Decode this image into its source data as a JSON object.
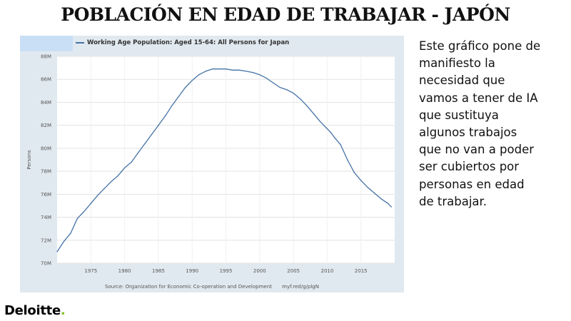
{
  "slide": {
    "title": "POBLACIÓN EN EDAD DE TRABAJAR - JAPÓN",
    "text_lines": [
      "Este gráfico pone de",
      "manifiesto la",
      "necesidad que",
      "vamos a tener de IA",
      "que sustituya",
      "algunos trabajos",
      "que no van a poder",
      "ser cubiertos por",
      "personas en edad",
      "de trabajar."
    ],
    "logo_text": "Deloitte",
    "logo_dot": "."
  },
  "chart_data": {
    "type": "line",
    "legend": "Working Age Population: Aged 15-64: All Persons for Japan",
    "ylabel": "Persons",
    "xlabel": "",
    "source": "Source: Organization for Economic Co-operation and Development",
    "link": "myf.red/g/plgN",
    "line_color": "#4572a7",
    "xlim": [
      1970,
      2020
    ],
    "ylim": [
      70000000,
      88000000
    ],
    "y_ticks": [
      70000000,
      72000000,
      74000000,
      76000000,
      78000000,
      80000000,
      82000000,
      84000000,
      86000000,
      88000000
    ],
    "y_tick_labels": [
      "70M",
      "72M",
      "74M",
      "76M",
      "78M",
      "80M",
      "82M",
      "84M",
      "86M",
      "88M"
    ],
    "x_ticks": [
      1975,
      1980,
      1985,
      1990,
      1995,
      2000,
      2005,
      2010,
      2015
    ],
    "x_tick_labels": [
      "1975",
      "1980",
      "1985",
      "1990",
      "1995",
      "2000",
      "2005",
      "2010",
      "2015"
    ],
    "grid": true,
    "series": [
      {
        "name": "Working Age Population: Aged 15-64: All Persons for Japan",
        "x": [
          1970,
          1971,
          1972,
          1973,
          1974,
          1975,
          1976,
          1977,
          1978,
          1979,
          1980,
          1981,
          1982,
          1983,
          1984,
          1985,
          1986,
          1987,
          1988,
          1989,
          1990,
          1991,
          1992,
          1993,
          1994,
          1995,
          1996,
          1997,
          1998,
          1999,
          2000,
          2001,
          2002,
          2003,
          2004,
          2005,
          2006,
          2007,
          2008,
          2009,
          2010,
          2010.5,
          2011,
          2012,
          2013,
          2014,
          2015,
          2016,
          2017,
          2018,
          2019,
          2019.5
        ],
        "values": [
          71000000,
          71900000,
          72600000,
          73900000,
          74500000,
          75200000,
          75900000,
          76500000,
          77100000,
          77600000,
          78300000,
          78800000,
          79600000,
          80400000,
          81200000,
          82000000,
          82800000,
          83700000,
          84500000,
          85300000,
          85900000,
          86400000,
          86700000,
          86900000,
          86900000,
          86900000,
          86800000,
          86800000,
          86700000,
          86600000,
          86400000,
          86100000,
          85700000,
          85300000,
          85100000,
          84800000,
          84300000,
          83700000,
          83000000,
          82300000,
          81700000,
          81400000,
          81000000,
          80300000,
          79000000,
          77900000,
          77200000,
          76600000,
          76100000,
          75600000,
          75200000,
          74900000
        ]
      }
    ]
  }
}
